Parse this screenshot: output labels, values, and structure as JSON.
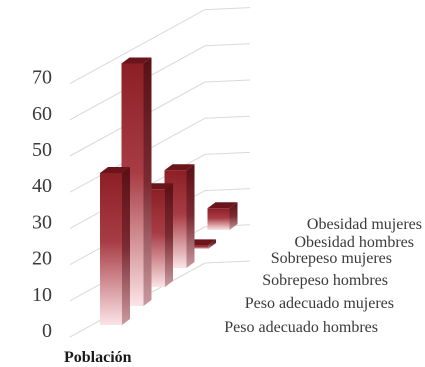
{
  "chart_data": {
    "type": "bar",
    "three_d": true,
    "categories": [
      "Peso adecuado hombres",
      "Peso adecuado mujeres",
      "Sobrepeso hombres",
      "Sobrepeso mujeres",
      "Obesidad hombres",
      "Obesidad mujeres"
    ],
    "values": [
      42,
      67,
      27,
      27,
      1,
      6
    ],
    "x_category_label": "Población",
    "yticks": [
      0,
      10,
      20,
      30,
      40,
      50,
      60,
      70
    ],
    "ylim": [
      0,
      80
    ],
    "grid": true,
    "colors": {
      "front_top": "#8c1f26",
      "front_bottom": "#fbe4e6",
      "side_top": "#5a1016",
      "side_bottom": "#c99aa0",
      "top": "#6b151b"
    }
  }
}
